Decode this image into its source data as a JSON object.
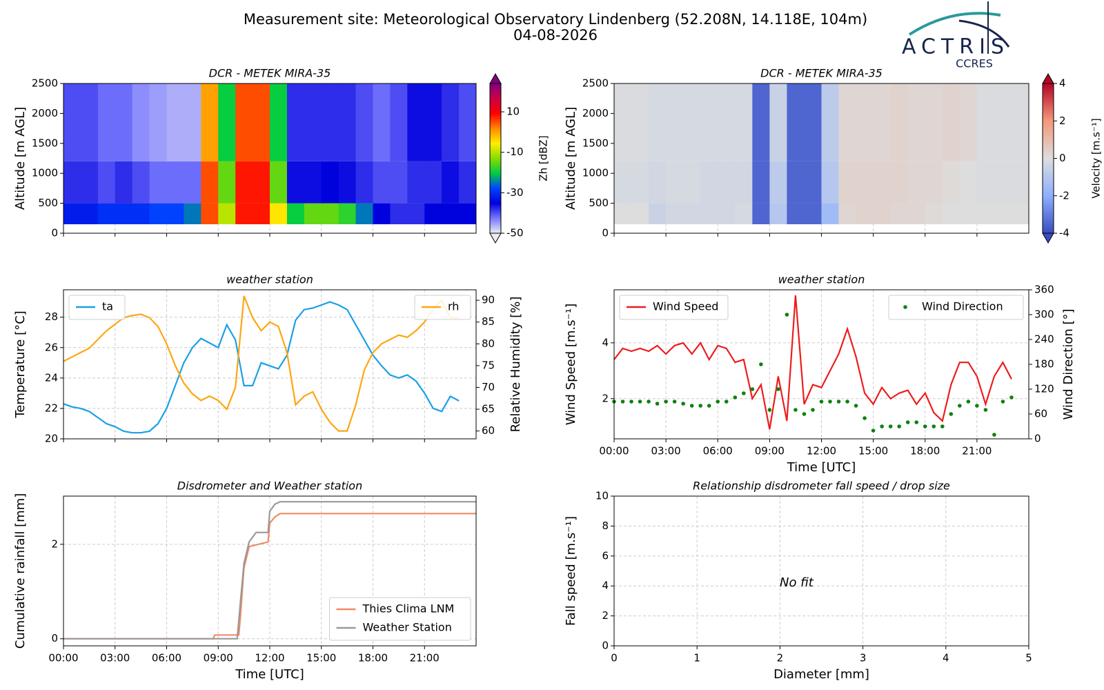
{
  "header": {
    "title": "Measurement site: Meteorological Observatory Lindenberg (52.208N, 14.118E, 104m)",
    "date": "04-08-2026",
    "logo_text": "ACTRIS",
    "logo_subtext": "CCRES"
  },
  "chart_data": [
    {
      "type": "heatmap",
      "title": "DCR - METEK MIRA-35",
      "ylabel": "Altitude [m AGL]",
      "colorbar_label": "Zh [dBZ]",
      "xlim": [
        0,
        24
      ],
      "xticks": [
        0,
        3,
        6,
        9,
        12,
        15,
        18,
        21
      ],
      "xtick_labels": false,
      "ylim": [
        0,
        2500
      ],
      "yticks": [
        0,
        500,
        1000,
        1500,
        2000,
        2500
      ],
      "grid": true,
      "xbins": [
        0,
        1,
        2,
        3,
        4,
        5,
        6,
        7,
        8,
        9,
        10,
        11,
        12,
        13,
        14,
        15,
        16,
        17,
        18,
        19,
        20,
        21,
        22,
        23,
        24
      ],
      "ybins": [
        150,
        500,
        1200,
        2500
      ],
      "z": [
        [
          -32,
          -32,
          -30,
          -30,
          -30,
          -28,
          -28,
          -25,
          5,
          -10,
          8,
          8,
          -5,
          -20,
          -15,
          -15,
          -18,
          -25,
          -35,
          -38,
          -38,
          -35,
          -35,
          -35
        ],
        [
          -38,
          -38,
          -40,
          -38,
          -40,
          -42,
          -42,
          -42,
          5,
          -15,
          8,
          8,
          -15,
          -36,
          -36,
          -35,
          -36,
          -38,
          -40,
          -40,
          -38,
          -38,
          -36,
          -38
        ],
        [
          -40,
          -40,
          -42,
          -42,
          -44,
          -45,
          -46,
          -46,
          0,
          -20,
          5,
          5,
          -20,
          -38,
          -38,
          -38,
          -38,
          -40,
          -42,
          -40,
          -36,
          -36,
          -38,
          -40
        ]
      ],
      "zlim": [
        -50,
        24
      ],
      "zticks": [
        -50,
        -30,
        -10,
        10
      ],
      "colors": [
        "#ececf2",
        "#7777ff",
        "#0000dd",
        "#0044ff",
        "#00cc44",
        "#88dd00",
        "#ffee00",
        "#ff8800",
        "#ff0000",
        "#cc0044",
        "#800080"
      ]
    },
    {
      "type": "heatmap",
      "title": "DCR - METEK MIRA-35",
      "ylabel": "Altitude [m AGL]",
      "colorbar_label": "Velocity [m.s⁻¹]",
      "xlim": [
        0,
        24
      ],
      "xticks": [
        0,
        3,
        6,
        9,
        12,
        15,
        18,
        21
      ],
      "xtick_labels": false,
      "ylim": [
        0,
        2500
      ],
      "yticks": [
        0,
        500,
        1000,
        1500,
        2000,
        2500
      ],
      "grid": true,
      "xbins": [
        0,
        1,
        2,
        3,
        4,
        5,
        6,
        7,
        8,
        9,
        10,
        11,
        12,
        13,
        14,
        15,
        16,
        17,
        18,
        19,
        20,
        21,
        22,
        23,
        24
      ],
      "ybins": [
        150,
        500,
        1200,
        2500
      ],
      "z": [
        [
          0,
          0,
          -0.5,
          -0.3,
          -0.3,
          -0.3,
          -0.3,
          -0.2,
          -3.5,
          -1,
          -3.5,
          -3.5,
          -1.5,
          0.2,
          0.3,
          0.3,
          0.2,
          0.2,
          0.1,
          0,
          0,
          0,
          0,
          0
        ],
        [
          -0.2,
          -0.2,
          -0.3,
          -0.2,
          -0.2,
          -0.3,
          -0.3,
          -0.3,
          -3.5,
          -0.8,
          -3.5,
          -3.5,
          -1,
          0.3,
          0.3,
          0.3,
          0.3,
          0.2,
          0.2,
          0.1,
          0,
          -0.1,
          -0.1,
          -0.1
        ],
        [
          -0.1,
          -0.1,
          -0.2,
          -0.2,
          -0.2,
          -0.2,
          -0.2,
          -0.2,
          -3.5,
          -0.5,
          -3.5,
          -3.5,
          -0.8,
          0.2,
          0.2,
          0.2,
          0.3,
          0.2,
          0.2,
          0.3,
          0.2,
          -0.1,
          -0.1,
          -0.1
        ]
      ],
      "zlim": [
        -4,
        4
      ],
      "zticks": [
        -4,
        -2,
        0,
        2,
        4
      ],
      "colors": [
        "#3a4cc0",
        "#8db0fe",
        "#dddddd",
        "#f4987a",
        "#b40426"
      ]
    },
    {
      "type": "line",
      "title": "weather station",
      "ylabel": "Temperature [°C]",
      "y2label": "Relative Humidity [%]",
      "xlim": [
        0,
        24
      ],
      "xticks": [
        0,
        3,
        6,
        9,
        12,
        15,
        18,
        21
      ],
      "xtick_labels": false,
      "ylim": [
        20,
        29.8
      ],
      "yticks": [
        20,
        22,
        24,
        26,
        28
      ],
      "y2lim": [
        58.2,
        92.4
      ],
      "y2ticks": [
        60,
        65,
        70,
        75,
        80,
        85,
        90
      ],
      "grid": true,
      "x": [
        0,
        0.5,
        1,
        1.5,
        2,
        2.5,
        3,
        3.5,
        4,
        4.5,
        5,
        5.5,
        6,
        6.5,
        7,
        7.5,
        8,
        8.5,
        9,
        9.5,
        10,
        10.5,
        11,
        11.5,
        12,
        12.5,
        13,
        13.5,
        14,
        14.5,
        15,
        15.5,
        16,
        16.5,
        17,
        17.5,
        18,
        18.5,
        19,
        19.5,
        20,
        20.5,
        21,
        21.5,
        22,
        22.5,
        23
      ],
      "series": [
        {
          "name": "ta",
          "color": "#1a9fe8",
          "legend": "upper left",
          "values": [
            22.3,
            22.1,
            22.0,
            21.8,
            21.4,
            21.0,
            20.8,
            20.5,
            20.4,
            20.4,
            20.5,
            21.0,
            22.0,
            23.5,
            25.0,
            26.0,
            26.6,
            26.3,
            26.0,
            27.5,
            26.5,
            23.5,
            23.5,
            25.0,
            24.8,
            24.6,
            25.5,
            27.8,
            28.5,
            28.6,
            28.8,
            29.0,
            28.8,
            28.5,
            27.5,
            26.5,
            25.5,
            24.8,
            24.2,
            24.0,
            24.2,
            23.8,
            23.0,
            22.0,
            21.8,
            22.8,
            22.5
          ]
        },
        {
          "name": "rh",
          "color": "#ffa510",
          "legend": "upper right",
          "axis": "y2",
          "values": [
            76,
            77,
            78,
            79,
            81,
            83,
            84.5,
            86,
            86.5,
            86.8,
            86,
            84,
            80,
            75,
            71,
            68.5,
            67,
            68,
            67,
            65,
            70,
            91,
            86,
            83,
            85,
            84,
            78,
            66,
            68,
            69,
            65,
            62,
            60,
            60,
            66,
            74,
            78,
            80,
            81,
            82,
            81.5,
            83,
            85,
            88,
            90,
            86,
            86
          ]
        }
      ]
    },
    {
      "type": "line",
      "title": "weather station",
      "ylabel": "Wind Speed [m.s⁻¹]",
      "y2label": "Wind Direction [°]",
      "xlabel": "Time [UTC]",
      "xlim": [
        0,
        24
      ],
      "xticks": [
        {
          "value": 0,
          "label": "00:00"
        },
        {
          "value": 3,
          "label": "03:00"
        },
        {
          "value": 6,
          "label": "06:00"
        },
        {
          "value": 9,
          "label": "09:00"
        },
        {
          "value": 12,
          "label": "12:00"
        },
        {
          "value": 15,
          "label": "15:00"
        },
        {
          "value": 18,
          "label": "18:00"
        },
        {
          "value": 21,
          "label": "21:00"
        }
      ],
      "ylim": [
        0.56,
        5.9
      ],
      "yticks": [
        2,
        4
      ],
      "y2lim": [
        0,
        360
      ],
      "y2ticks": [
        0,
        60,
        120,
        180,
        240,
        300,
        360
      ],
      "grid": true,
      "x": [
        0,
        0.5,
        1,
        1.5,
        2,
        2.5,
        3,
        3.5,
        4,
        4.5,
        5,
        5.5,
        6,
        6.5,
        7,
        7.5,
        8,
        8.5,
        9,
        9.5,
        10,
        10.5,
        11,
        11.5,
        12,
        12.5,
        13,
        13.5,
        14,
        14.5,
        15,
        15.5,
        16,
        16.5,
        17,
        17.5,
        18,
        18.5,
        19,
        19.5,
        20,
        20.5,
        21,
        21.5,
        22,
        22.5,
        23
      ],
      "series": [
        {
          "name": "Wind Speed",
          "color": "#ee1c1c",
          "legend": "upper left",
          "values": [
            3.4,
            3.8,
            3.7,
            3.8,
            3.7,
            3.9,
            3.6,
            3.9,
            4.0,
            3.6,
            4.0,
            3.4,
            3.9,
            3.8,
            3.3,
            3.4,
            2.0,
            2.5,
            0.9,
            2.8,
            1.2,
            5.7,
            1.8,
            2.5,
            2.4,
            3.0,
            3.6,
            4.5,
            3.5,
            2.2,
            1.8,
            2.4,
            2.0,
            2.2,
            2.3,
            1.8,
            2.2,
            1.5,
            1.2,
            2.5,
            3.3,
            3.3,
            2.8,
            1.8,
            2.8,
            3.3,
            2.7
          ]
        },
        {
          "name": "Wind Direction",
          "color": "#108010",
          "legend": "upper right",
          "axis": "y2",
          "mode": "markers",
          "values": [
            90,
            90,
            90,
            90,
            90,
            85,
            90,
            90,
            85,
            80,
            80,
            80,
            90,
            90,
            100,
            110,
            120,
            180,
            70,
            120,
            300,
            70,
            60,
            70,
            90,
            90,
            90,
            90,
            80,
            50,
            20,
            30,
            30,
            30,
            40,
            40,
            30,
            30,
            30,
            60,
            80,
            90,
            80,
            70,
            10,
            90,
            100
          ]
        }
      ]
    },
    {
      "type": "line",
      "title": "Disdrometer and Weather station",
      "ylabel": "Cumulative rainfall [mm]",
      "xlabel": "Time [UTC]",
      "xlim": [
        0,
        24
      ],
      "xticks": [
        {
          "value": 0,
          "label": "00:00"
        },
        {
          "value": 3,
          "label": "03:00"
        },
        {
          "value": 6,
          "label": "06:00"
        },
        {
          "value": 9,
          "label": "09:00"
        },
        {
          "value": 12,
          "label": "12:00"
        },
        {
          "value": 15,
          "label": "15:00"
        },
        {
          "value": 18,
          "label": "18:00"
        },
        {
          "value": 21,
          "label": "21:00"
        }
      ],
      "ylim": [
        -0.15,
        3.02
      ],
      "yticks": [
        0,
        2
      ],
      "grid": true,
      "legend": "lower right",
      "series": [
        {
          "name": "Thies Clima LNM",
          "color": "#f08a66",
          "x": [
            0,
            8.7,
            8.8,
            10.2,
            10.3,
            10.5,
            10.8,
            11.9,
            12.0,
            12.3,
            12.6,
            24
          ],
          "values": [
            0,
            0,
            0.08,
            0.08,
            0.5,
            1.5,
            1.95,
            2.05,
            2.45,
            2.58,
            2.65,
            2.65
          ]
        },
        {
          "name": "Weather Station",
          "color": "#999999",
          "x": [
            0,
            10.1,
            10.3,
            10.5,
            10.8,
            11.2,
            11.9,
            12.0,
            12.3,
            12.6,
            24
          ],
          "values": [
            0,
            0,
            0.8,
            1.6,
            2.05,
            2.25,
            2.25,
            2.7,
            2.85,
            2.9,
            2.9
          ]
        }
      ]
    },
    {
      "type": "scatter",
      "title": "Relationship disdrometer fall speed / drop size",
      "ylabel": "Fall speed [m.s⁻¹]",
      "xlabel": "Diameter [mm]",
      "xlim": [
        0,
        5
      ],
      "xticks": [
        0,
        1,
        2,
        3,
        4,
        5
      ],
      "ylim": [
        0,
        10
      ],
      "yticks": [
        0,
        2,
        4,
        6,
        8,
        10
      ],
      "grid": true,
      "annotation": "No fit"
    }
  ]
}
